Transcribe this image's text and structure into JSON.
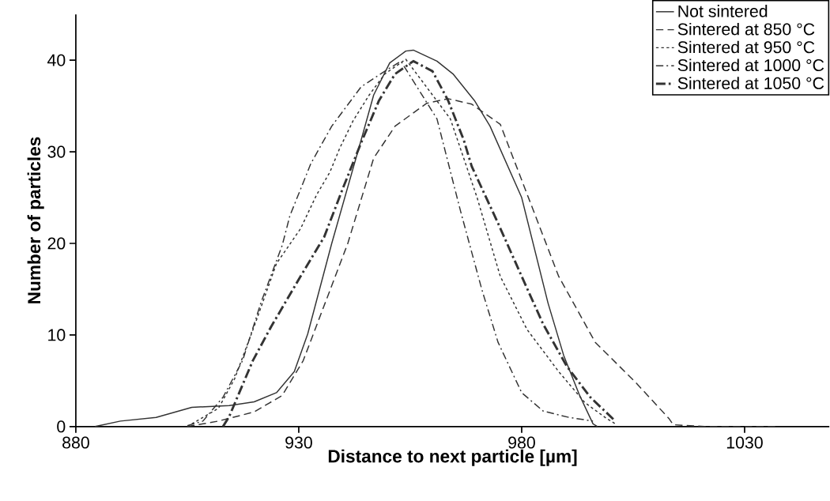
{
  "chart_data": {
    "type": "line",
    "xlabel": "Distance to next particle [µm]",
    "ylabel": "Number of particles",
    "xlim": [
      880,
      1049
    ],
    "xticks": [
      880,
      930,
      980,
      1030
    ],
    "ylim": [
      0,
      45
    ],
    "yticks": [
      0,
      10,
      20,
      30,
      40
    ],
    "grid": false,
    "legend": "top right",
    "marker": "none",
    "series": [
      {
        "name": "Not sintered",
        "color": "#333333",
        "line_style": "solid",
        "x": [
          884.3,
          890,
          898,
          906,
          914.4,
          920,
          925,
          929,
          932,
          937.4,
          944,
          946.8,
          950.4,
          954,
          955.7,
          961,
          964.6,
          969.4,
          972.9,
          980,
          985.9,
          989.4,
          993,
          996,
          997
        ],
        "values": [
          0,
          0.6,
          1.0,
          2.1,
          2.3,
          2.7,
          3.7,
          6.0,
          10.1,
          20.0,
          31.3,
          36.2,
          39.7,
          41.0,
          41.1,
          39.9,
          38.5,
          35.6,
          32.8,
          25.0,
          13.5,
          7.8,
          3.4,
          0.3,
          0
        ]
      },
      {
        "name": "Sintered at 850 °C",
        "color": "#333333",
        "line_style": "dashed",
        "x": [
          905,
          912,
          920,
          926.3,
          931,
          941,
          946.8,
          951.6,
          958.7,
          963.5,
          968.8,
          975.2,
          988.3,
          996.5,
          1005.4,
          1013,
          1014,
          1021,
          1037
        ],
        "values": [
          0,
          0.6,
          1.6,
          3.4,
          7.2,
          20.0,
          29.3,
          32.8,
          35.3,
          35.8,
          35.2,
          33.0,
          16.4,
          9.2,
          4.9,
          0.9,
          0.2,
          0,
          0
        ]
      },
      {
        "name": "Sintered at 950 °C",
        "color": "#333333",
        "line_style": "dotted",
        "x": [
          905,
          912,
          915.6,
          920.2,
          925,
          930.4,
          934,
          937,
          939.2,
          942.2,
          945.8,
          949.3,
          954,
          964,
          970,
          975.2,
          981.2,
          988.3,
          994.2,
          999,
          1001
        ],
        "values": [
          0,
          2.0,
          5.2,
          11.2,
          17.8,
          21.6,
          25.3,
          27.8,
          30.4,
          33.4,
          36.2,
          38.5,
          40.1,
          33.6,
          25.0,
          16.4,
          10.6,
          6.0,
          2.6,
          0.9,
          0.3
        ]
      },
      {
        "name": "Sintered at 1000 °C",
        "color": "#333333",
        "line_style": "dashdot",
        "x": [
          905,
          908.5,
          913,
          917.4,
          921.5,
          926.3,
          928,
          932.7,
          937.4,
          944,
          949.3,
          952.9,
          961,
          966.3,
          971.1,
          974.7,
          980,
          984.8,
          990.6,
          996
        ],
        "values": [
          0.1,
          0.6,
          3.2,
          7.2,
          13.5,
          19.8,
          23.0,
          28.7,
          32.8,
          37.1,
          38.8,
          39.9,
          33.6,
          23.5,
          14.9,
          9.2,
          3.7,
          1.7,
          1.0,
          0.6
        ]
      },
      {
        "name": "Sintered at 1050 °C",
        "color": "#333333",
        "line_style": "dashdotthick",
        "x": [
          913,
          914.4,
          919.7,
          923.8,
          930.4,
          935.7,
          939.8,
          944,
          948,
          951.6,
          955.7,
          960,
          963.5,
          967,
          968.8,
          974.7,
          980,
          984.8,
          990.1,
          995.4,
          1001
        ],
        "values": [
          0,
          1.1,
          7.2,
          10.9,
          16.4,
          20.7,
          25.9,
          31.0,
          35.6,
          38.5,
          39.9,
          38.8,
          35.6,
          31.3,
          28.4,
          22.2,
          16.4,
          11.2,
          6.6,
          3.2,
          0.6
        ]
      }
    ]
  }
}
